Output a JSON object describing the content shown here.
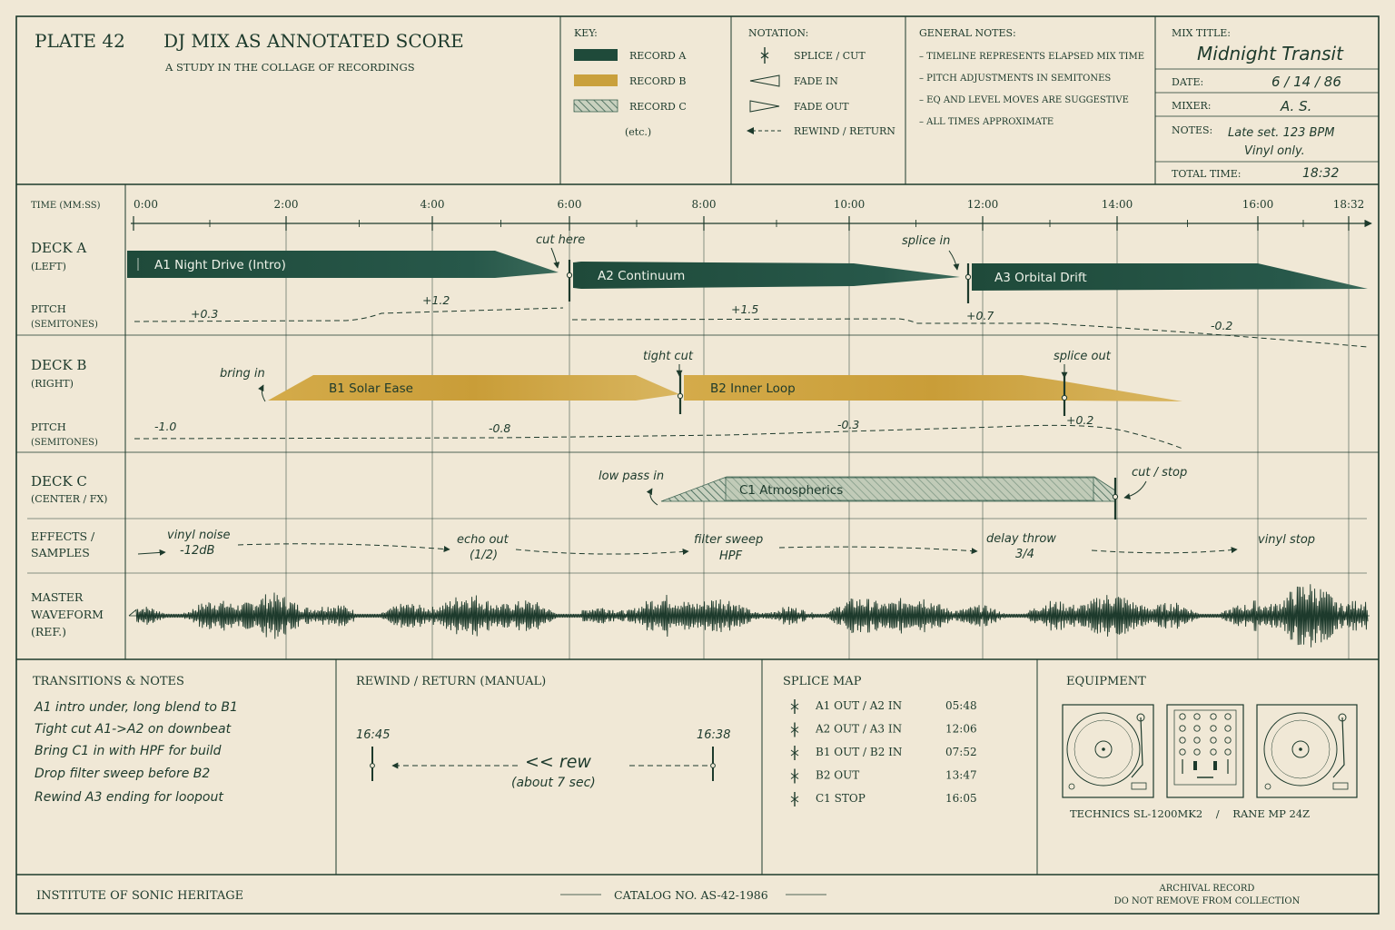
{
  "colors": {
    "ink": "#1d3a2c",
    "paper": "#f0e8d6",
    "record_a": "#1f4a3a",
    "record_b": "#c9a03c",
    "record_c": "#8ea592"
  },
  "header": {
    "plate": "PLATE 42",
    "title": "DJ MIX AS ANNOTATED SCORE",
    "subtitle": "A STUDY IN THE COLLAGE OF RECORDINGS"
  },
  "key": {
    "heading": "KEY:",
    "items": [
      {
        "label": "RECORD A"
      },
      {
        "label": "RECORD B"
      },
      {
        "label": "RECORD C"
      }
    ],
    "etc": "(etc.)"
  },
  "notation": {
    "heading": "NOTATION:",
    "items": [
      {
        "label": "SPLICE / CUT",
        "icon": "splice-icon"
      },
      {
        "label": "FADE IN",
        "icon": "fade-in-icon"
      },
      {
        "label": "FADE OUT",
        "icon": "fade-out-icon"
      },
      {
        "label": "REWIND / RETURN",
        "icon": "rewind-arrow-icon"
      }
    ]
  },
  "general_notes": {
    "heading": "GENERAL NOTES:",
    "items": [
      "– TIMELINE REPRESENTS ELAPSED MIX TIME",
      "– PITCH ADJUSTMENTS IN SEMITONES",
      "– EQ AND LEVEL MOVES ARE SUGGESTIVE",
      "– ALL TIMES APPROXIMATE"
    ]
  },
  "mix_info": {
    "title_label": "MIX TITLE:",
    "title": "Midnight Transit",
    "date_label": "DATE:",
    "date": "6 / 14 / 86",
    "mixer_label": "MIXER:",
    "mixer": "A. S.",
    "notes_label": "NOTES:",
    "notes_line1": "Late set. 123 BPM",
    "notes_line2": "Vinyl only.",
    "total_label": "TOTAL TIME:",
    "total": "18:32"
  },
  "timeline": {
    "label": "TIME (MM:SS)",
    "ticks": [
      {
        "t": 0,
        "label": "0:00"
      },
      {
        "t": 120,
        "label": "2:00"
      },
      {
        "t": 240,
        "label": "4:00"
      },
      {
        "t": 360,
        "label": "6:00"
      },
      {
        "t": 480,
        "label": "8:00"
      },
      {
        "t": 600,
        "label": "10:00"
      },
      {
        "t": 720,
        "label": "12:00"
      },
      {
        "t": 840,
        "label": "14:00"
      },
      {
        "t": 960,
        "label": "16:00"
      },
      {
        "t": 1112,
        "label": "18:32"
      }
    ]
  },
  "rows": {
    "deck_a": {
      "label": "DECK A",
      "sub": "(LEFT)"
    },
    "pitch_a": {
      "label": "PITCH",
      "sub": "(SEMITONES)"
    },
    "deck_b": {
      "label": "DECK B",
      "sub": "(RIGHT)"
    },
    "pitch_b": {
      "label": "PITCH",
      "sub": "(SEMITONES)"
    },
    "deck_c": {
      "label": "DECK C",
      "sub": "(CENTER / FX)"
    },
    "effects": {
      "label1": "EFFECTS /",
      "label2": "SAMPLES"
    },
    "master": {
      "label1": "MASTER",
      "label2": "WAVEFORM",
      "label3": "(REF.)"
    }
  },
  "tracks": {
    "a1": "A1   Night Drive   (Intro)",
    "a2": "A2   Continuum",
    "a3": "A3   Orbital Drift",
    "b1": "B1   Solar Ease",
    "b2": "B2   Inner Loop",
    "c1": "C1   Atmospherics"
  },
  "annotations": {
    "cut_here": "cut here",
    "splice_in": "splice in",
    "tight_cut": "tight cut",
    "splice_out": "splice out",
    "bring_in": "bring in",
    "low_pass_in": "low pass in",
    "cut_stop": "cut / stop"
  },
  "pitch_labels": {
    "a": [
      "+0.3",
      "+1.2",
      "+1.5",
      "+0.7",
      "-0.2"
    ],
    "b": [
      "-1.0",
      "-0.8",
      "-0.3",
      "+0.2"
    ]
  },
  "effects": [
    {
      "line1": "vinyl noise",
      "line2": "-12dB"
    },
    {
      "line1": "echo out",
      "line2": "(1/2)"
    },
    {
      "line1": "filter sweep",
      "line2": "HPF"
    },
    {
      "line1": "delay throw",
      "line2": "3/4"
    },
    {
      "line1": "vinyl stop",
      "line2": ""
    }
  ],
  "transitions": {
    "heading": "TRANSITIONS & NOTES",
    "items": [
      "A1 intro under, long blend to B1",
      "Tight cut A1->A2 on downbeat",
      "Bring C1 in with HPF for build",
      "Drop filter sweep before B2",
      "Rewind A3 ending for loopout"
    ]
  },
  "rewind": {
    "heading": "REWIND / RETURN (MANUAL)",
    "from": "16:45",
    "to": "16:38",
    "label": "<< rew",
    "sub": "(about 7 sec)"
  },
  "splice_map": {
    "heading": "SPLICE MAP",
    "items": [
      {
        "label": "A1 OUT / A2 IN",
        "time": "05:48"
      },
      {
        "label": "A2 OUT / A3 IN",
        "time": "12:06"
      },
      {
        "label": "B1 OUT / B2 IN",
        "time": "07:52"
      },
      {
        "label": "B2 OUT",
        "time": "13:47"
      },
      {
        "label": "C1 STOP",
        "time": "16:05"
      }
    ]
  },
  "equipment": {
    "heading": "EQUIPMENT",
    "caption": "TECHNICS SL-1200MK2    /    RANE MP 24Z"
  },
  "footer": {
    "left": "INSTITUTE OF SONIC HERITAGE",
    "center": "CATALOG NO. AS-42-1986",
    "right1": "ARCHIVAL RECORD",
    "right2": "DO NOT REMOVE FROM COLLECTION"
  }
}
